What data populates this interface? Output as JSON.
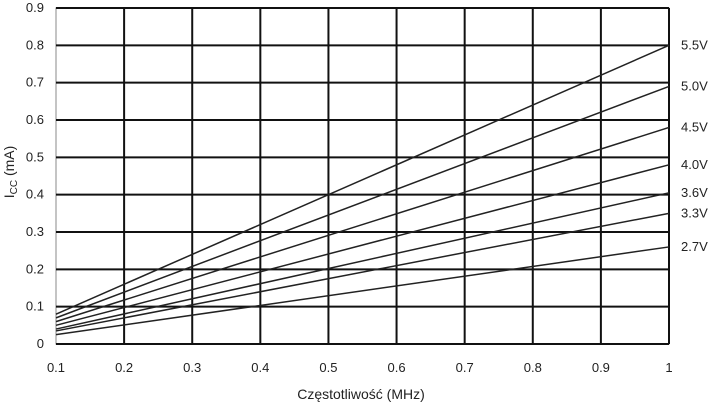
{
  "chart_data": {
    "type": "line",
    "title": "",
    "xlabel": "Częstotliwość (MHz)",
    "ylabel_main": "I",
    "ylabel_sub": "CC",
    "ylabel_unit": " (mA)",
    "xlim": [
      0.1,
      1.0
    ],
    "ylim": [
      0,
      0.9
    ],
    "x_ticks": [
      "0.1",
      "0.2",
      "0.3",
      "0.4",
      "0.5",
      "0.6",
      "0.7",
      "0.8",
      "0.9",
      "1"
    ],
    "y_ticks": [
      "0",
      "0.1",
      "0.2",
      "0.3",
      "0.4",
      "0.5",
      "0.6",
      "0.7",
      "0.8",
      "0.9"
    ],
    "grid": true,
    "legend": "right-end-labels",
    "series": [
      {
        "name": "5.5V",
        "x": [
          0.1,
          1.0
        ],
        "y": [
          0.08,
          0.8
        ]
      },
      {
        "name": "5.0V",
        "x": [
          0.1,
          1.0
        ],
        "y": [
          0.07,
          0.69
        ]
      },
      {
        "name": "4.5V",
        "x": [
          0.1,
          1.0
        ],
        "y": [
          0.06,
          0.58
        ]
      },
      {
        "name": "4.0V",
        "x": [
          0.1,
          1.0
        ],
        "y": [
          0.05,
          0.48
        ]
      },
      {
        "name": "3.6V",
        "x": [
          0.1,
          1.0
        ],
        "y": [
          0.04,
          0.405
        ]
      },
      {
        "name": "3.3V",
        "x": [
          0.1,
          1.0
        ],
        "y": [
          0.035,
          0.35
        ]
      },
      {
        "name": "2.7V",
        "x": [
          0.1,
          1.0
        ],
        "y": [
          0.025,
          0.26
        ]
      }
    ],
    "colors": {
      "line": "#222222",
      "grid": "#111111",
      "frame": "#888888"
    }
  }
}
